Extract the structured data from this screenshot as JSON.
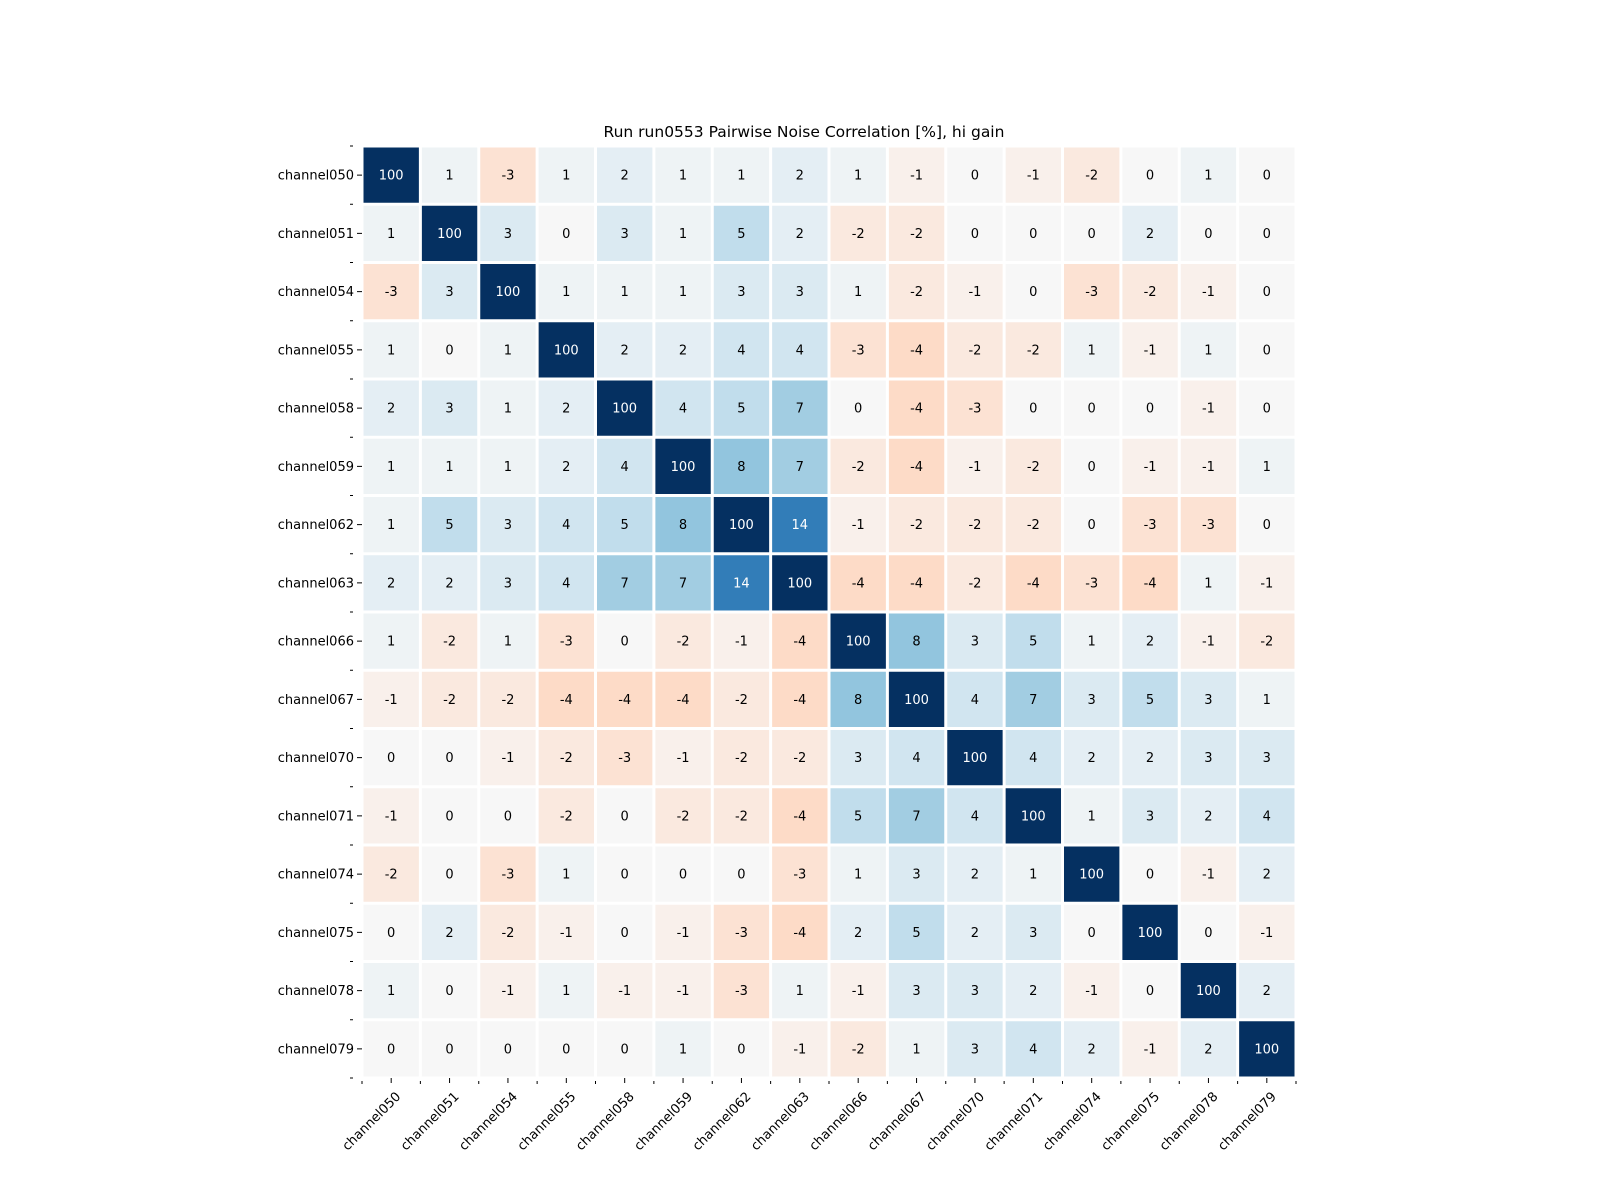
{
  "chart_data": {
    "type": "heatmap",
    "title": "Run run0553 Pairwise Noise Correlation [%], hi gain",
    "xlabel": "",
    "ylabel": "",
    "labels": [
      "channel050",
      "channel051",
      "channel054",
      "channel055",
      "channel058",
      "channel059",
      "channel062",
      "channel063",
      "channel066",
      "channel067",
      "channel070",
      "channel071",
      "channel074",
      "channel075",
      "channel078",
      "channel079"
    ],
    "values": [
      [
        100,
        1,
        -3,
        1,
        2,
        1,
        1,
        2,
        1,
        -1,
        0,
        -1,
        -2,
        0,
        1,
        0
      ],
      [
        1,
        100,
        3,
        0,
        3,
        1,
        5,
        2,
        -2,
        -2,
        0,
        0,
        0,
        2,
        0,
        0
      ],
      [
        -3,
        3,
        100,
        1,
        1,
        1,
        3,
        3,
        1,
        -2,
        -1,
        0,
        -3,
        -2,
        -1,
        0
      ],
      [
        1,
        0,
        1,
        100,
        2,
        2,
        4,
        4,
        -3,
        -4,
        -2,
        -2,
        1,
        -1,
        1,
        0
      ],
      [
        2,
        3,
        1,
        2,
        100,
        4,
        5,
        7,
        0,
        -4,
        -3,
        0,
        0,
        0,
        -1,
        0
      ],
      [
        1,
        1,
        1,
        2,
        4,
        100,
        8,
        7,
        -2,
        -4,
        -1,
        -2,
        0,
        -1,
        -1,
        1
      ],
      [
        1,
        5,
        3,
        4,
        5,
        8,
        100,
        14,
        -1,
        -2,
        -2,
        -2,
        0,
        -3,
        -3,
        0
      ],
      [
        2,
        2,
        3,
        4,
        7,
        7,
        14,
        100,
        -4,
        -4,
        -2,
        -4,
        -3,
        -4,
        1,
        -1
      ],
      [
        1,
        -2,
        1,
        -3,
        0,
        -2,
        -1,
        -4,
        100,
        8,
        3,
        5,
        1,
        2,
        -1,
        -2
      ],
      [
        -1,
        -2,
        -2,
        -4,
        -4,
        -4,
        -2,
        -4,
        8,
        100,
        4,
        7,
        3,
        5,
        3,
        1
      ],
      [
        0,
        0,
        -1,
        -2,
        -3,
        -1,
        -2,
        -2,
        3,
        4,
        100,
        4,
        2,
        2,
        3,
        3
      ],
      [
        -1,
        0,
        0,
        -2,
        0,
        -2,
        -2,
        -4,
        5,
        7,
        4,
        100,
        1,
        3,
        2,
        4
      ],
      [
        -2,
        0,
        -3,
        1,
        0,
        0,
        0,
        -3,
        1,
        3,
        2,
        1,
        100,
        0,
        -1,
        2
      ],
      [
        0,
        2,
        -2,
        -1,
        0,
        -1,
        -3,
        -4,
        2,
        5,
        2,
        3,
        0,
        100,
        0,
        -1
      ],
      [
        1,
        0,
        -1,
        1,
        -1,
        -1,
        -3,
        1,
        -1,
        3,
        3,
        2,
        -1,
        0,
        100,
        2
      ],
      [
        0,
        0,
        0,
        0,
        0,
        1,
        0,
        -1,
        -2,
        1,
        3,
        4,
        2,
        -1,
        2,
        100
      ]
    ],
    "colormap": "RdBu_r",
    "color_range": [
      -20,
      20
    ],
    "diverging_colors": {
      "negative": "#67001f",
      "neutral": "#f7f7f7",
      "positive": "#053061"
    }
  }
}
